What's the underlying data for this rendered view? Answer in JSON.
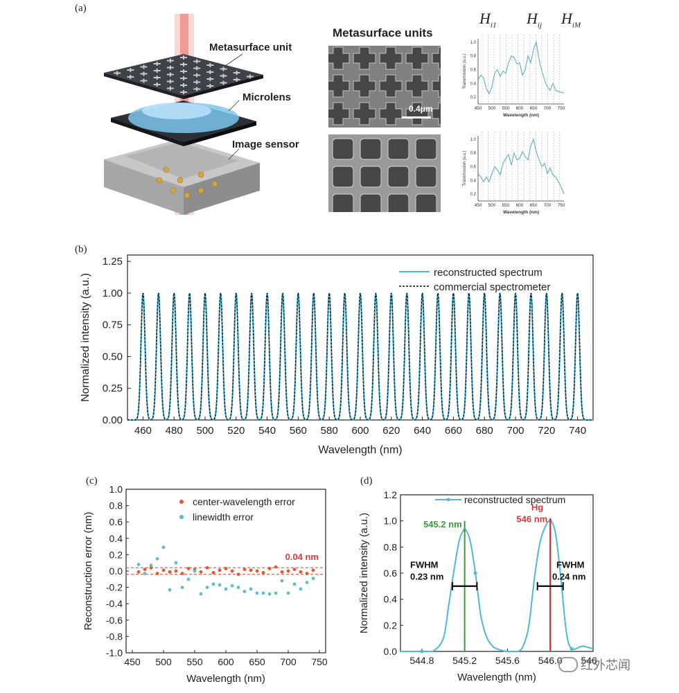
{
  "panel_a": {
    "label": "(a)",
    "illustration_labels": {
      "metasurface": "Metasurface unit",
      "microlens": "Microlens",
      "sensor": "Image sensor"
    },
    "sem_title": "Metasurface units",
    "scale_bar": "0.4μm",
    "markers": [
      "H",
      "i1",
      "H",
      "ij",
      "H",
      "iM"
    ],
    "mini_chart": {
      "ylabel": "Transmission (a.u.)",
      "xlabel": "Wavelength (nm)",
      "xticks": [
        450,
        500,
        550,
        600,
        650,
        700,
        750
      ],
      "yticks": [
        0.2,
        0.4,
        0.6,
        0.8,
        1.0
      ]
    }
  },
  "chart_data": [
    {
      "id": "a-top",
      "type": "line",
      "xlabel": "Wavelength (nm)",
      "ylabel": "Transmission (a.u.)",
      "xlim": [
        450,
        760
      ],
      "ylim": [
        0.1,
        1.05
      ],
      "x": [
        450,
        460,
        470,
        480,
        490,
        500,
        510,
        520,
        530,
        540,
        550,
        560,
        570,
        580,
        590,
        600,
        610,
        620,
        630,
        640,
        650,
        660,
        670,
        680,
        690,
        700,
        710,
        720,
        730,
        740,
        750,
        760
      ],
      "y": [
        0.45,
        0.52,
        0.48,
        0.32,
        0.25,
        0.35,
        0.55,
        0.6,
        0.5,
        0.58,
        0.55,
        0.7,
        0.8,
        0.78,
        0.68,
        0.7,
        0.52,
        0.6,
        0.8,
        0.7,
        0.9,
        1.0,
        0.75,
        0.58,
        0.45,
        0.35,
        0.3,
        0.4,
        0.3,
        0.28,
        0.27,
        0.26
      ]
    },
    {
      "id": "a-bottom",
      "type": "line",
      "xlabel": "Wavelength (nm)",
      "ylabel": "Transmission (a.u.)",
      "xlim": [
        450,
        760
      ],
      "ylim": [
        0.1,
        1.05
      ],
      "x": [
        450,
        460,
        470,
        480,
        490,
        500,
        510,
        520,
        530,
        540,
        550,
        560,
        570,
        580,
        590,
        600,
        610,
        620,
        630,
        640,
        650,
        660,
        670,
        680,
        690,
        700,
        710,
        720,
        730,
        740,
        750,
        760
      ],
      "y": [
        0.5,
        0.45,
        0.38,
        0.45,
        0.38,
        0.5,
        0.6,
        0.55,
        0.48,
        0.65,
        0.72,
        0.78,
        0.62,
        0.8,
        0.7,
        0.72,
        0.82,
        0.75,
        0.7,
        0.9,
        1.0,
        0.82,
        0.7,
        0.6,
        0.65,
        0.5,
        0.58,
        0.48,
        0.45,
        0.38,
        0.3,
        0.2
      ]
    },
    {
      "id": "b",
      "label": "(b)",
      "type": "line",
      "xlabel": "Wavelength (nm)",
      "ylabel": "Normalized intensity (a.u.)",
      "xlim": [
        450,
        750
      ],
      "ylim": [
        0,
        1.3
      ],
      "xticks": [
        460,
        480,
        500,
        520,
        540,
        560,
        580,
        600,
        620,
        640,
        660,
        680,
        700,
        720,
        740
      ],
      "yticks": [
        "0.00",
        "0.25",
        "0.50",
        "0.75",
        "1.00",
        "1.25"
      ],
      "peaks_start": 460,
      "peaks_step": 10,
      "peaks_end": 740,
      "series": [
        {
          "name": "reconstructed spectrum",
          "color": "#4db8d8"
        },
        {
          "name": "commercial spectrometer",
          "color": "#111111"
        }
      ]
    },
    {
      "id": "c",
      "label": "(c)",
      "type": "scatter",
      "xlabel": "Wavelength (nm)",
      "ylabel": "Reconstruction error (nm)",
      "xlim": [
        440,
        760
      ],
      "ylim": [
        -1.0,
        1.0
      ],
      "xticks": [
        450,
        500,
        550,
        600,
        650,
        700,
        750
      ],
      "yticks": [
        "1.0",
        "0.8",
        "0.6",
        "0.4",
        "0.2",
        "0.0",
        "-0.2",
        "-0.4",
        "-0.6",
        "-0.8",
        "-1.0"
      ],
      "threshold_label": "0.04 nm",
      "threshold": 0.04,
      "series": [
        {
          "name": "center-wavelength error",
          "color": "#e8572a",
          "x": [
            460,
            470,
            480,
            490,
            500,
            510,
            520,
            530,
            540,
            550,
            560,
            570,
            580,
            590,
            600,
            610,
            620,
            630,
            640,
            650,
            660,
            670,
            680,
            690,
            700,
            710,
            720,
            730,
            740
          ],
          "y": [
            -0.01,
            0.02,
            0.04,
            -0.03,
            0.01,
            -0.01,
            0.0,
            -0.03,
            0.03,
            0.02,
            -0.01,
            0.04,
            -0.02,
            0.01,
            0.03,
            0.0,
            -0.04,
            0.02,
            0.01,
            0.0,
            -0.02,
            0.03,
            0.05,
            -0.01,
            0.0,
            0.02,
            -0.01,
            -0.03,
            0.01
          ]
        },
        {
          "name": "linewidth error",
          "color": "#5fbccc",
          "x": [
            460,
            470,
            480,
            490,
            500,
            510,
            520,
            530,
            540,
            550,
            560,
            570,
            580,
            590,
            600,
            610,
            620,
            630,
            640,
            650,
            660,
            670,
            680,
            690,
            700,
            710,
            720,
            730,
            740
          ],
          "y": [
            0.08,
            -0.03,
            0.07,
            0.15,
            0.29,
            -0.23,
            0.1,
            -0.2,
            -0.1,
            0.0,
            -0.28,
            -0.2,
            -0.16,
            -0.17,
            -0.22,
            -0.18,
            -0.2,
            -0.25,
            -0.22,
            -0.27,
            -0.27,
            -0.28,
            -0.27,
            -0.12,
            -0.27,
            -0.16,
            -0.22,
            -0.14,
            -0.09
          ]
        }
      ]
    },
    {
      "id": "d",
      "label": "(d)",
      "type": "line",
      "xlabel": "Wavelength (nm)",
      "ylabel": "Normalized intensity (a.u.)",
      "xlim": [
        544.6,
        546.4
      ],
      "ylim": [
        0,
        1.2
      ],
      "xticks": [
        "544.8",
        "545.2",
        "545.6",
        "546.0",
        "546.4"
      ],
      "yticks": [
        "0.0",
        "0.2",
        "0.4",
        "0.6",
        "0.8",
        "1.0",
        "1.2"
      ],
      "series": [
        {
          "name": "reconstructed spectrum",
          "color": "#4db8d8",
          "x": [
            544.6,
            544.8,
            544.9,
            545.0,
            545.05,
            545.1,
            545.15,
            545.2,
            545.25,
            545.3,
            545.35,
            545.4,
            545.45,
            545.5,
            545.6,
            545.7,
            545.75,
            545.8,
            545.85,
            545.9,
            545.95,
            546.0,
            546.05,
            546.1,
            546.15,
            546.2,
            546.3,
            546.4
          ],
          "y": [
            0.0,
            0.0,
            0.0,
            0.1,
            0.35,
            0.62,
            0.85,
            0.93,
            0.85,
            0.6,
            0.28,
            0.12,
            0.05,
            0.02,
            0.0,
            0.0,
            0.05,
            0.2,
            0.55,
            0.82,
            0.95,
            1.0,
            0.9,
            0.55,
            0.15,
            0.02,
            0.04,
            0.02
          ]
        }
      ],
      "annotations": {
        "green_line_label": "545.2 nm",
        "red_line_label_1": "Hg",
        "red_line_label_2": "546 nm",
        "fwhm_left_1": "FWHM",
        "fwhm_left_2": "0.23 nm",
        "fwhm_right_1": "FWHM",
        "fwhm_right_2": "0.24 nm"
      },
      "colors": {
        "green": "#3a9a3a",
        "red": "#d8343a"
      }
    }
  ],
  "watermark": "红外芯闻"
}
